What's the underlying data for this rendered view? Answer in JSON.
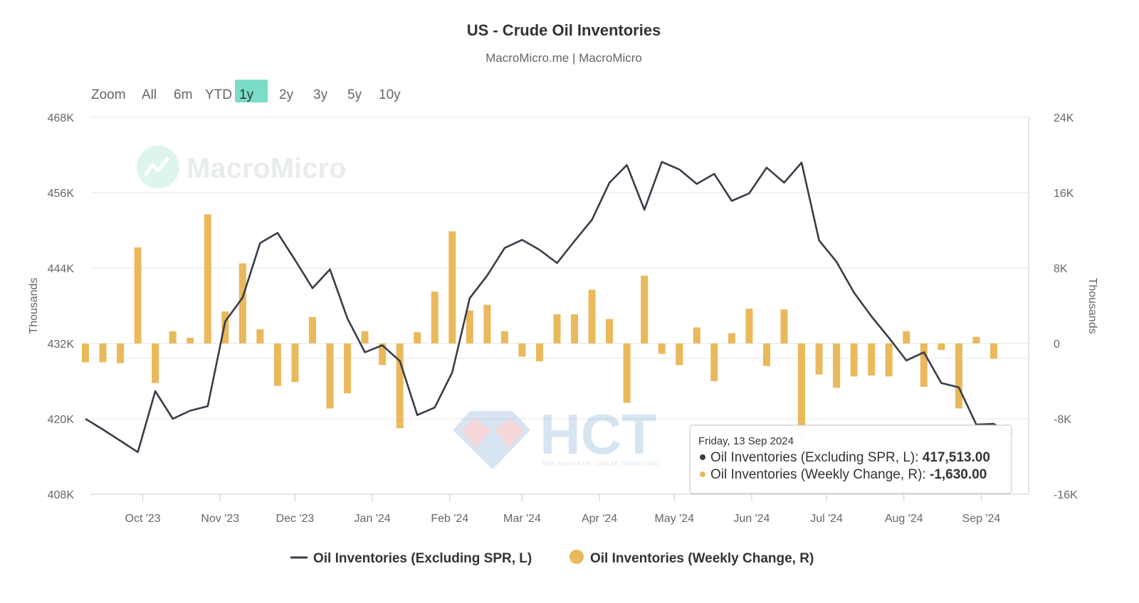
{
  "header": {
    "title": "US - Crude Oil Inventories",
    "subtitle": "MacroMicro.me | MacroMicro"
  },
  "watermarks": {
    "brand": "MacroMicro",
    "hct": "HCT",
    "hct_tagline": "KIẾN TẠO GIÁ TRỊ - CHIA SẺ THÀNH CÔNG"
  },
  "zoom": {
    "label": "Zoom",
    "options": [
      "All",
      "6m",
      "YTD",
      "1y",
      "2y",
      "3y",
      "5y",
      "10y"
    ],
    "selected": "1y"
  },
  "colors": {
    "line": "#3a3c4a",
    "bars": "#e9b95c",
    "zoom_active": "#7bdcc7",
    "grid": "#e6e6e6"
  },
  "tooltip": {
    "date": "Friday, 13 Sep 2024",
    "line_label": "Oil Inventories (Excluding SPR, L): ",
    "line_value": "417,513.00",
    "bar_label": "Oil Inventories (Weekly Change, R): ",
    "bar_value": "-1,630.00"
  },
  "chart_data": {
    "type": "line+bar",
    "title": "US - Crude Oil Inventories",
    "subtitle": "MacroMicro.me | MacroMicro",
    "x_labels": [
      "Oct '23",
      "Nov '23",
      "Dec '23",
      "Jan '24",
      "Feb '24",
      "Mar '24",
      "Apr '24",
      "May '24",
      "Jun '24",
      "Jul '24",
      "Aug '24",
      "Sep '24"
    ],
    "x_label_dates": [
      "2023-10-01",
      "2023-11-01",
      "2023-12-01",
      "2024-01-01",
      "2024-02-01",
      "2024-03-01",
      "2024-04-01",
      "2024-05-01",
      "2024-06-01",
      "2024-07-01",
      "2024-08-01",
      "2024-09-01"
    ],
    "x_range": [
      "2023-09-10",
      "2024-09-20"
    ],
    "left_axis": {
      "label": "Thousands",
      "ticks": [
        "408K",
        "420K",
        "432K",
        "444K",
        "456K",
        "468K"
      ],
      "range": [
        408000,
        468000
      ]
    },
    "right_axis": {
      "label": "Thousands",
      "ticks": [
        "-16K",
        "-8K",
        "0",
        "8K",
        "16K",
        "24K"
      ],
      "range": [
        -16000,
        24000
      ]
    },
    "legend": {
      "position": "bottom"
    },
    "grid": true,
    "series": [
      {
        "name": "Oil Inventories (Excluding SPR, L)",
        "type": "line",
        "axis": "left",
        "points": [
          [
            "2023-09-08",
            420000
          ],
          [
            "2023-09-15",
            418300
          ],
          [
            "2023-09-22",
            416500
          ],
          [
            "2023-09-29",
            414700
          ],
          [
            "2023-10-06",
            424400
          ],
          [
            "2023-10-13",
            420000
          ],
          [
            "2023-10-20",
            421300
          ],
          [
            "2023-10-27",
            422000
          ],
          [
            "2023-11-03",
            435500
          ],
          [
            "2023-11-10",
            439300
          ],
          [
            "2023-11-17",
            448000
          ],
          [
            "2023-11-24",
            449600
          ],
          [
            "2023-12-01",
            445300
          ],
          [
            "2023-12-08",
            440800
          ],
          [
            "2023-12-15",
            443800
          ],
          [
            "2023-12-22",
            436000
          ],
          [
            "2023-12-29",
            430600
          ],
          [
            "2024-01-05",
            431700
          ],
          [
            "2024-01-12",
            429200
          ],
          [
            "2024-01-19",
            420600
          ],
          [
            "2024-01-26",
            421800
          ],
          [
            "2024-02-02",
            427400
          ],
          [
            "2024-02-09",
            439200
          ],
          [
            "2024-02-16",
            442800
          ],
          [
            "2024-02-23",
            447200
          ],
          [
            "2024-03-01",
            448500
          ],
          [
            "2024-03-08",
            446900
          ],
          [
            "2024-03-15",
            444800
          ],
          [
            "2024-03-22",
            448300
          ],
          [
            "2024-03-29",
            451700
          ],
          [
            "2024-04-05",
            457600
          ],
          [
            "2024-04-12",
            460400
          ],
          [
            "2024-04-19",
            453300
          ],
          [
            "2024-04-26",
            460900
          ],
          [
            "2024-05-03",
            459700
          ],
          [
            "2024-05-10",
            457400
          ],
          [
            "2024-05-17",
            459000
          ],
          [
            "2024-05-24",
            454700
          ],
          [
            "2024-05-31",
            455900
          ],
          [
            "2024-06-07",
            460000
          ],
          [
            "2024-06-14",
            457600
          ],
          [
            "2024-06-21",
            460800
          ],
          [
            "2024-06-28",
            448400
          ],
          [
            "2024-07-05",
            445000
          ],
          [
            "2024-07-12",
            440100
          ],
          [
            "2024-07-19",
            436300
          ],
          [
            "2024-07-26",
            432900
          ],
          [
            "2024-08-02",
            429300
          ],
          [
            "2024-08-09",
            430600
          ],
          [
            "2024-08-16",
            425700
          ],
          [
            "2024-08-23",
            425000
          ],
          [
            "2024-08-30",
            419100
          ],
          [
            "2024-09-06",
            419200
          ],
          [
            "2024-09-13",
            417513
          ]
        ]
      },
      {
        "name": "Oil Inventories (Weekly Change, R)",
        "type": "bar",
        "axis": "right",
        "points": [
          [
            "2023-09-08",
            -2000
          ],
          [
            "2023-09-15",
            -2000
          ],
          [
            "2023-09-22",
            -2100
          ],
          [
            "2023-09-29",
            10200
          ],
          [
            "2023-10-06",
            -4200
          ],
          [
            "2023-10-13",
            1300
          ],
          [
            "2023-10-20",
            600
          ],
          [
            "2023-10-27",
            13700
          ],
          [
            "2023-11-03",
            3400
          ],
          [
            "2023-11-10",
            8500
          ],
          [
            "2023-11-17",
            1500
          ],
          [
            "2023-11-24",
            -4500
          ],
          [
            "2023-12-01",
            -4100
          ],
          [
            "2023-12-08",
            2800
          ],
          [
            "2023-12-15",
            -6900
          ],
          [
            "2023-12-22",
            -5300
          ],
          [
            "2023-12-29",
            1300
          ],
          [
            "2024-01-05",
            -2300
          ],
          [
            "2024-01-12",
            -9000
          ],
          [
            "2024-01-19",
            1200
          ],
          [
            "2024-01-26",
            5500
          ],
          [
            "2024-02-02",
            11900
          ],
          [
            "2024-02-09",
            3500
          ],
          [
            "2024-02-16",
            4100
          ],
          [
            "2024-02-23",
            1300
          ],
          [
            "2024-03-01",
            -1400
          ],
          [
            "2024-03-08",
            -1900
          ],
          [
            "2024-03-15",
            3100
          ],
          [
            "2024-03-22",
            3100
          ],
          [
            "2024-03-29",
            5700
          ],
          [
            "2024-04-05",
            2600
          ],
          [
            "2024-04-12",
            -6300
          ],
          [
            "2024-04-19",
            7200
          ],
          [
            "2024-04-26",
            -1100
          ],
          [
            "2024-05-03",
            -2300
          ],
          [
            "2024-05-10",
            1700
          ],
          [
            "2024-05-17",
            -4000
          ],
          [
            "2024-05-24",
            1100
          ],
          [
            "2024-05-31",
            3700
          ],
          [
            "2024-06-07",
            -2400
          ],
          [
            "2024-06-14",
            3600
          ],
          [
            "2024-06-21",
            -10000
          ],
          [
            "2024-06-28",
            -3300
          ],
          [
            "2024-07-05",
            -4700
          ],
          [
            "2024-07-12",
            -3500
          ],
          [
            "2024-07-19",
            -3400
          ],
          [
            "2024-07-26",
            -3500
          ],
          [
            "2024-08-02",
            1300
          ],
          [
            "2024-08-09",
            -4600
          ],
          [
            "2024-08-16",
            -700
          ],
          [
            "2024-08-23",
            -6900
          ],
          [
            "2024-08-30",
            700
          ],
          [
            "2024-09-06",
            -1630
          ]
        ]
      }
    ]
  }
}
